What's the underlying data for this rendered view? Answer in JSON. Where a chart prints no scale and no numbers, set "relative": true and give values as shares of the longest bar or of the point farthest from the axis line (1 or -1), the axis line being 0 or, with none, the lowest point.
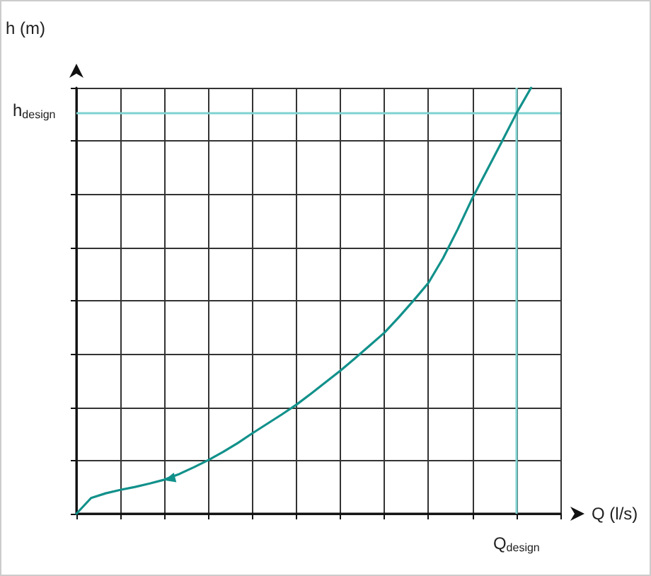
{
  "chart_data": {
    "type": "line",
    "relative": true,
    "xlabel": "Q (l/s)",
    "ylabel": "h (m)",
    "categories": [
      null,
      null,
      null,
      null,
      null,
      null,
      null,
      null,
      null,
      null,
      null,
      null,
      null,
      null,
      null,
      null,
      null,
      null,
      null,
      null,
      null,
      null,
      null,
      null,
      null,
      null,
      null,
      null,
      null,
      null,
      null,
      null,
      null,
      null
    ],
    "series": [
      {
        "color": "#12918b",
        "values": [
          0,
          0.037,
          0.048,
          0.056,
          0.063,
          0.071,
          0.08,
          0.093,
          0.109,
          0.126,
          0.145,
          0.166,
          0.189,
          0.211,
          0.233,
          0.256,
          0.282,
          0.309,
          0.336,
          0.365,
          0.395,
          0.425,
          0.462,
          0.501,
          0.542,
          0.6,
          0.668,
          0.741,
          0.807,
          0.873,
          0.94,
          1,
          null,
          null
        ]
      }
    ],
    "ref_lines": [
      {
        "axis": "y",
        "value": 0.94,
        "label": "h$_{design}$",
        "color": "#7fd3d0"
      }
    ],
    "annotations": [
      "Q$_{design}$"
    ],
    "grid": true,
    "marker": "none",
    "line_style": "solid"
  }
}
